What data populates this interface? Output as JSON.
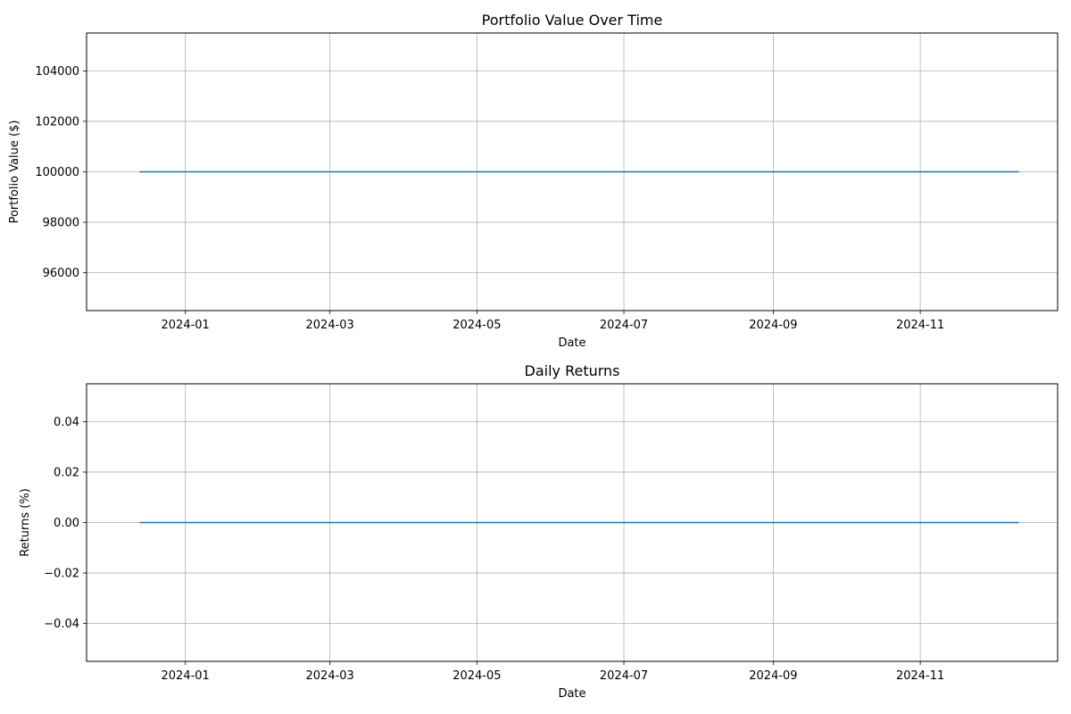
{
  "chart_data": [
    {
      "type": "line",
      "title": "Portfolio Value Over Time",
      "xlabel": "Date",
      "ylabel": "Portfolio Value ($)",
      "xlim": [
        "2023-11-21",
        "2024-12-28"
      ],
      "ylim": [
        94500,
        105500
      ],
      "x_ticks": [
        "2024-01",
        "2024-03",
        "2024-05",
        "2024-07",
        "2024-09",
        "2024-11"
      ],
      "y_ticks": [
        96000,
        98000,
        100000,
        102000,
        104000
      ],
      "y_tick_labels": [
        "96000",
        "98000",
        "100000",
        "102000",
        "104000"
      ],
      "grid": true,
      "line_color": "#1f77b4",
      "series": [
        {
          "x": [
            "2023-12-13",
            "2024-12-12"
          ],
          "y": [
            100000,
            100000
          ]
        }
      ]
    },
    {
      "type": "line",
      "title": "Daily Returns",
      "xlabel": "Date",
      "ylabel": "Returns (%)",
      "xlim": [
        "2023-11-21",
        "2024-12-28"
      ],
      "ylim": [
        -0.055,
        0.055
      ],
      "x_ticks": [
        "2024-01",
        "2024-03",
        "2024-05",
        "2024-07",
        "2024-09",
        "2024-11"
      ],
      "y_ticks": [
        -0.04,
        -0.02,
        0.0,
        0.02,
        0.04
      ],
      "y_tick_labels": [
        "−0.04",
        "−0.02",
        "0.00",
        "0.02",
        "0.04"
      ],
      "grid": true,
      "line_color": "#1f77b4",
      "series": [
        {
          "x": [
            "2023-12-13",
            "2024-12-12"
          ],
          "y": [
            0.0,
            0.0
          ]
        }
      ]
    }
  ]
}
